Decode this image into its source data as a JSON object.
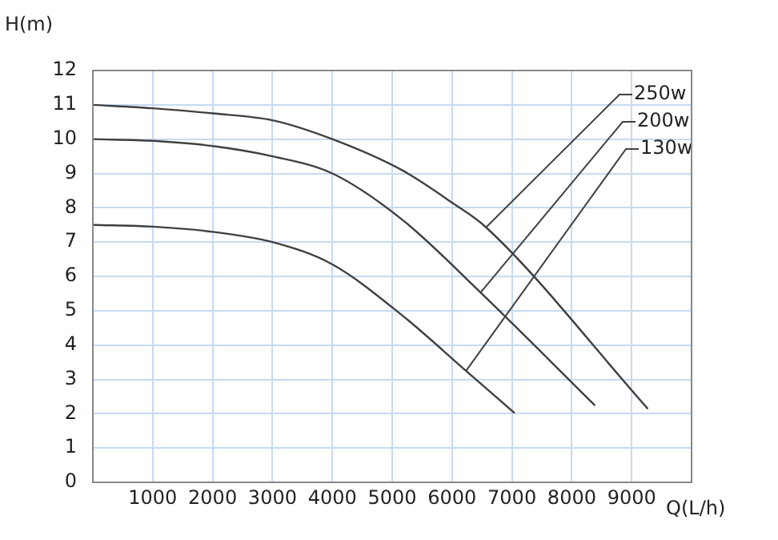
{
  "chart_data": {
    "type": "line",
    "xlabel": "Q(L/h)",
    "ylabel": "H(m)",
    "xlim": [
      0,
      10000
    ],
    "xticks": [
      1000,
      2000,
      3000,
      4000,
      5000,
      6000,
      7000,
      8000,
      9000
    ],
    "ylim": [
      0,
      12
    ],
    "yticks": [
      0,
      1,
      2,
      3,
      4,
      5,
      6,
      7,
      8,
      9,
      10,
      11,
      12
    ],
    "grid": true,
    "legend": false,
    "marker": "none",
    "line_style": "solid",
    "series": [
      {
        "name": "250w",
        "color": "#404040",
        "x": [
          0,
          1000,
          2000,
          3000,
          4000,
          5170,
          6000,
          6568,
          9270
        ],
        "values": [
          11,
          10.9,
          10.75,
          10.55,
          10,
          9.09,
          8.15,
          7.43,
          2.14
        ]
      },
      {
        "name": "200w",
        "color": "#404040",
        "x": [
          0,
          1000,
          2000,
          3000,
          4000,
          5170,
          6476,
          8387
        ],
        "values": [
          10,
          9.95,
          9.8,
          9.5,
          9,
          7.65,
          5.53,
          2.24
        ]
      },
      {
        "name": "130w",
        "color": "#404040",
        "x": [
          0,
          1000,
          2000,
          3000,
          4000,
          5170,
          6233,
          7043
        ],
        "values": [
          7.5,
          7.45,
          7.3,
          7,
          6.35,
          4.86,
          3.25,
          2.02
        ]
      }
    ]
  }
}
